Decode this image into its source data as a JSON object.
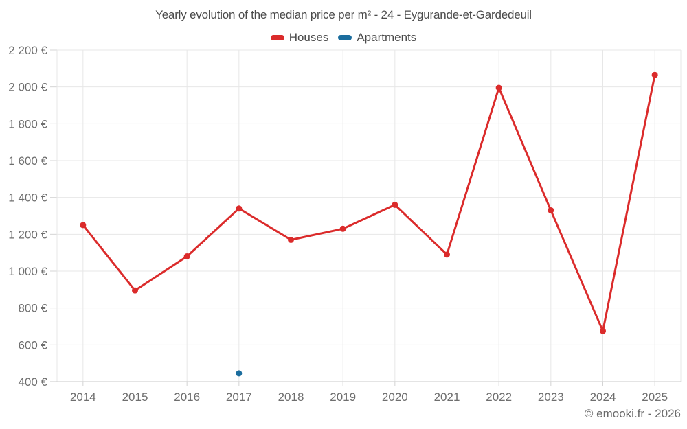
{
  "title": "Yearly evolution of the median price per m² - 24 - Eygurande-et-Gardedeuil",
  "legend": [
    {
      "label": "Houses",
      "color": "#db2b2b"
    },
    {
      "label": "Apartments",
      "color": "#1b6d9e"
    }
  ],
  "copyright": "© emooki.fr - 2026",
  "colors": {
    "houses": "#db2b2b",
    "apartments": "#1b6d9e",
    "gridline": "#e7e7e7",
    "axis_line": "#c9c9c9",
    "tick": "#d4d4d4",
    "axis_label": "#6e6e6e",
    "title_text": "#4b4b4b"
  },
  "chart_data": {
    "type": "line",
    "title": "Yearly evolution of the median price per m² - 24 - Eygurande-et-Gardedeuil",
    "categories": [
      "2014",
      "2015",
      "2016",
      "2017",
      "2018",
      "2019",
      "2020",
      "2021",
      "2022",
      "2023",
      "2024",
      "2025"
    ],
    "series": [
      {
        "name": "Houses",
        "color": "#db2b2b",
        "values": [
          1250,
          895,
          1080,
          1340,
          1170,
          1230,
          1360,
          1090,
          1995,
          1330,
          675,
          2065
        ]
      },
      {
        "name": "Apartments",
        "color": "#1b6d9e",
        "values": [
          null,
          null,
          null,
          445,
          null,
          null,
          null,
          null,
          null,
          null,
          null,
          null
        ]
      }
    ],
    "xlabel": "",
    "ylabel": "",
    "ytick_format": "{value} €",
    "ytick_step": 200,
    "ylim": [
      400,
      2200
    ],
    "grid": true,
    "legend_position": "top"
  }
}
